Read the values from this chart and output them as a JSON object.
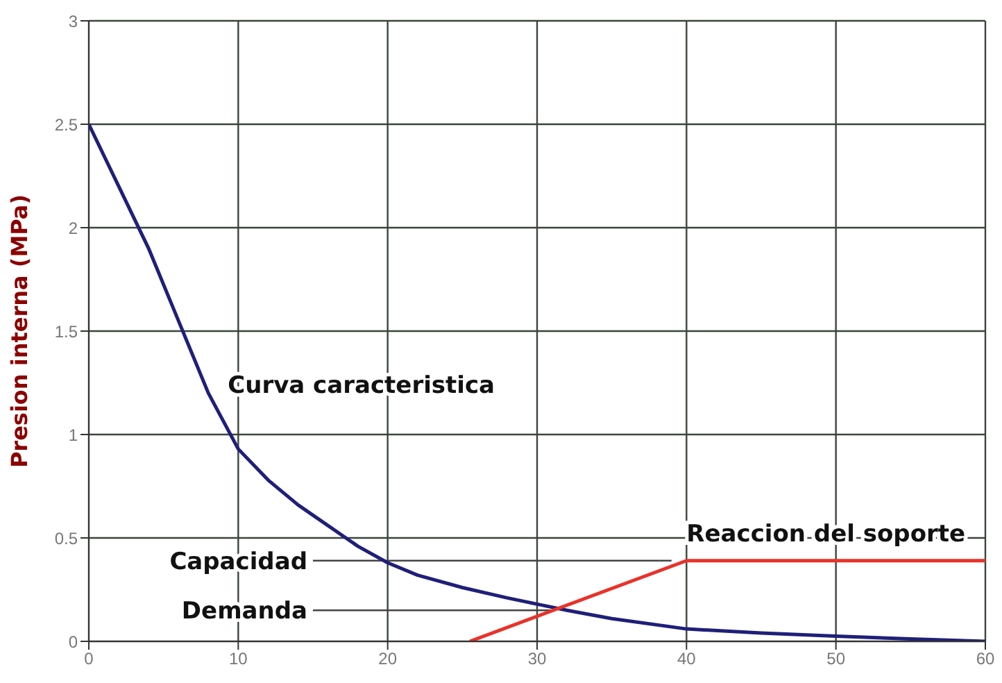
{
  "chart_data": {
    "type": "line",
    "ylabel": "Presion interna (MPa)",
    "xlim": [
      0,
      60
    ],
    "xticks": [
      0,
      10,
      20,
      30,
      40,
      50,
      60
    ],
    "ylim": [
      0,
      3
    ],
    "yticks": [
      0,
      0.5,
      1,
      1.5,
      2,
      2.5,
      3
    ],
    "grid": true,
    "series": [
      {
        "name": "Curva caracteristica",
        "color": "#1f1f7a",
        "x": [
          0,
          2,
          4,
          6,
          8,
          10,
          12,
          14,
          16,
          18,
          20,
          22,
          25,
          28,
          30,
          32,
          35,
          40,
          45,
          50,
          55,
          60
        ],
        "values": [
          2.5,
          2.2,
          1.9,
          1.55,
          1.2,
          0.93,
          0.78,
          0.66,
          0.56,
          0.46,
          0.38,
          0.32,
          0.26,
          0.21,
          0.18,
          0.15,
          0.11,
          0.06,
          0.04,
          0.025,
          0.012,
          0
        ]
      },
      {
        "name": "Reaccion del soporte",
        "color": "#e8332a",
        "x": [
          25.5,
          40,
          60
        ],
        "values": [
          0,
          0.39,
          0.39
        ]
      }
    ],
    "annotations": [
      {
        "text": "Capacidad",
        "x": 39,
        "y": 0.39
      },
      {
        "text": "Demanda",
        "x": 31,
        "y": 0.15
      }
    ]
  }
}
